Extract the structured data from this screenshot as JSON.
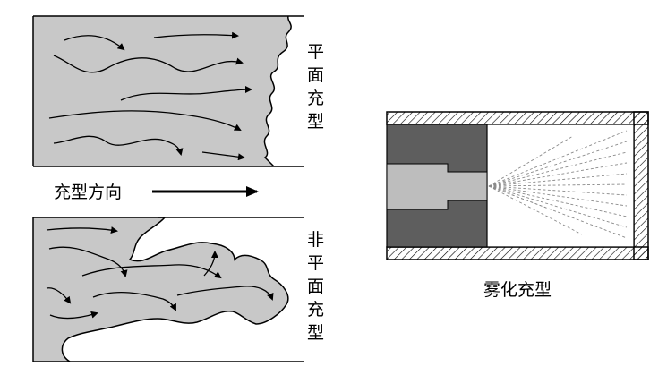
{
  "labels": {
    "planar": [
      "平",
      "面",
      "充",
      "型"
    ],
    "direction": "充型方向",
    "nonplanar": [
      "非",
      "平",
      "面",
      "充",
      "型"
    ],
    "atomized": "雾化充型"
  },
  "colors": {
    "fill_gray": "#c8c8c8",
    "dark_gray": "#5e5e5e",
    "light_gray": "#bdbdbd",
    "spray": "#8a8a8a",
    "outline": "#000000"
  }
}
